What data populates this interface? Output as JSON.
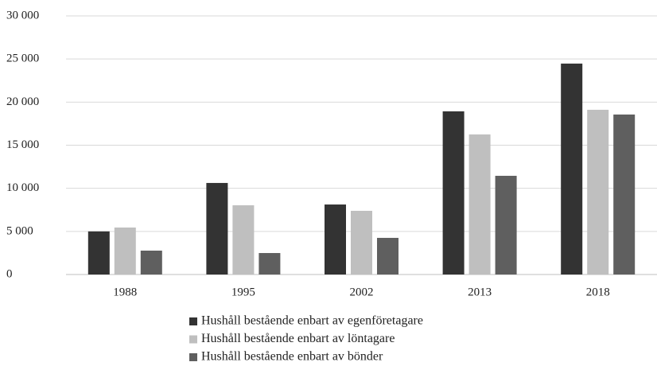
{
  "chart_data": {
    "type": "bar",
    "categories": [
      "1988",
      "1995",
      "2002",
      "2013",
      "2018"
    ],
    "series": [
      {
        "name": "Hushåll bestående enbart av egenföretagare",
        "color": "#333333",
        "values": [
          5000,
          10620,
          8120,
          18930,
          24470
        ]
      },
      {
        "name": "Hushåll bestående enbart av löntagare",
        "color": "#bfbfbf",
        "values": [
          5450,
          8030,
          7390,
          16250,
          19110
        ]
      },
      {
        "name": "Hushåll bestående enbart av bönder",
        "color": "#5f5f5f",
        "values": [
          2770,
          2490,
          4250,
          11450,
          18560
        ]
      }
    ],
    "ylim": [
      0,
      30000
    ],
    "yticks": [
      0,
      {
        "value": 5000,
        "label": "5 000"
      },
      {
        "value": 10000,
        "label": "10 000"
      },
      {
        "value": 15000,
        "label": "15 000"
      },
      {
        "value": 20000,
        "label": "20 000"
      },
      {
        "value": 25000,
        "label": "25 000"
      },
      {
        "value": 30000,
        "label": "30 000"
      }
    ],
    "grid": true,
    "legend": "bottom"
  }
}
